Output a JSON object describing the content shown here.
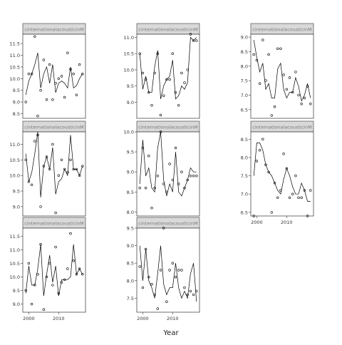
{
  "figure": {
    "xlabel": "Year",
    "strip_label": "cinternationalacousticinM"
  },
  "chart_data": [
    {
      "type": "line",
      "panel": "row1-col1",
      "strip": "cinternationalacousticinM",
      "xlim": [
        1998,
        2019
      ],
      "ylim": [
        8.3,
        11.9
      ],
      "yticks": [
        8.5,
        9.0,
        9.5,
        10.0,
        10.5,
        11.0,
        11.5
      ],
      "xticks": [],
      "show_x_labels": false,
      "line_x": [
        1999,
        2000,
        2001,
        2002,
        2003,
        2004,
        2005,
        2006,
        2007,
        2008,
        2009,
        2010,
        2011,
        2012,
        2013,
        2014,
        2015,
        2016,
        2017,
        2018
      ],
      "line_y": [
        9.3,
        9.9,
        10.2,
        10.6,
        11.1,
        9.6,
        10.2,
        10.5,
        9.8,
        10.6,
        9.4,
        9.8,
        9.9,
        9.8,
        9.6,
        10.5,
        9.6,
        9.7,
        10.0,
        10.2
      ],
      "points_x": [
        1999,
        2000,
        2001,
        2002,
        2003,
        2004,
        2005,
        2006,
        2007,
        2008,
        2009,
        2010,
        2011,
        2012,
        2013,
        2014,
        2015,
        2016,
        2017,
        2018
      ],
      "points_y": [
        9.0,
        10.2,
        10.2,
        11.8,
        8.4,
        9.5,
        10.8,
        9.1,
        10.6,
        9.1,
        9.8,
        10.0,
        10.1,
        9.2,
        11.1,
        10.4,
        10.2,
        9.3,
        10.6,
        10.2
      ]
    },
    {
      "type": "line",
      "panel": "row1-col2",
      "strip": "cinternationalacousticinM",
      "xlim": [
        1998,
        2019
      ],
      "ylim": [
        8.5,
        11.1
      ],
      "yticks": [
        9.0,
        9.5,
        10.0,
        10.5,
        11.0
      ],
      "xticks": [],
      "show_x_labels": false,
      "line_x": [
        1999,
        2000,
        2001,
        2002,
        2003,
        2004,
        2005,
        2006,
        2007,
        2008,
        2009,
        2010,
        2011,
        2012,
        2013,
        2014,
        2015,
        2016,
        2017,
        2018
      ],
      "line_y": [
        10.5,
        9.4,
        9.8,
        9.3,
        9.3,
        10.1,
        10.6,
        9.1,
        9.5,
        9.7,
        9.8,
        10.3,
        9.1,
        9.2,
        9.5,
        9.4,
        9.6,
        11.0,
        10.9,
        11.0
      ],
      "points_x": [
        1999,
        2000,
        2001,
        2002,
        2003,
        2004,
        2005,
        2006,
        2007,
        2008,
        2009,
        2010,
        2011,
        2012,
        2013,
        2014,
        2015,
        2016,
        2017,
        2018
      ],
      "points_y": [
        10.5,
        9.9,
        9.7,
        9.3,
        8.9,
        9.9,
        10.5,
        8.6,
        9.2,
        9.7,
        9.7,
        10.5,
        9.3,
        8.9,
        9.9,
        9.6,
        10.0,
        11.1,
        10.9,
        10.9
      ]
    },
    {
      "type": "line",
      "panel": "row1-col3",
      "strip": "cinternationalacousticinM",
      "xlim": [
        1998,
        2019
      ],
      "ylim": [
        6.2,
        9.1
      ],
      "yticks": [
        6.5,
        7.0,
        7.5,
        8.0,
        8.5,
        9.0
      ],
      "xticks": [],
      "show_x_labels": false,
      "line_x": [
        1999,
        2000,
        2001,
        2002,
        2003,
        2004,
        2005,
        2006,
        2007,
        2008,
        2009,
        2010,
        2011,
        2012,
        2013,
        2014,
        2015,
        2016,
        2017,
        2018
      ],
      "line_y": [
        8.9,
        8.3,
        7.8,
        8.1,
        7.2,
        7.4,
        6.9,
        6.9,
        7.9,
        8.1,
        7.2,
        6.9,
        7.1,
        7.1,
        7.6,
        7.3,
        6.8,
        7.0,
        7.4,
        6.9
      ],
      "points_x": [
        1999,
        2000,
        2001,
        2002,
        2003,
        2004,
        2005,
        2006,
        2007,
        2008,
        2009,
        2010,
        2011,
        2012,
        2013,
        2014,
        2015,
        2016,
        2017,
        2018
      ],
      "points_y": [
        8.4,
        8.2,
        7.4,
        8.9,
        7.5,
        8.4,
        6.3,
        6.6,
        8.6,
        8.6,
        7.7,
        7.2,
        7.6,
        7.1,
        7.8,
        7.0,
        6.7,
        6.9,
        7.3,
        6.7
      ]
    },
    {
      "type": "line",
      "panel": "row2-col1",
      "strip": "cinternationalacousticinM",
      "xlim": [
        1998,
        2019
      ],
      "ylim": [
        8.7,
        11.4
      ],
      "yticks": [
        9.0,
        9.5,
        10.0,
        10.5,
        11.0
      ],
      "xticks": [],
      "show_x_labels": false,
      "line_x": [
        1999,
        2000,
        2001,
        2002,
        2003,
        2004,
        2005,
        2006,
        2007,
        2008,
        2009,
        2010,
        2011,
        2012,
        2013,
        2014,
        2015,
        2016,
        2017,
        2018
      ],
      "line_y": [
        10.7,
        9.8,
        10.1,
        10.7,
        11.4,
        9.3,
        10.3,
        10.6,
        10.2,
        10.9,
        9.4,
        9.8,
        9.9,
        10.2,
        10.0,
        11.3,
        10.2,
        10.2,
        10.0,
        10.3
      ],
      "points_x": [
        1999,
        2000,
        2001,
        2002,
        2003,
        2004,
        2005,
        2006,
        2007,
        2008,
        2009,
        2010,
        2011,
        2012,
        2013,
        2014,
        2015,
        2016,
        2017,
        2018
      ],
      "points_y": [
        10.5,
        9.8,
        9.7,
        11.1,
        11.3,
        9.0,
        10.3,
        10.6,
        10.2,
        11.0,
        8.8,
        10.0,
        10.5,
        10.2,
        10.1,
        10.5,
        10.2,
        10.2,
        10.0,
        10.3
      ]
    },
    {
      "type": "line",
      "panel": "row2-col2",
      "strip": "cinternationalacousticinM",
      "xlim": [
        1998,
        2019
      ],
      "ylim": [
        7.9,
        10.0
      ],
      "yticks": [
        8.0,
        8.5,
        9.0,
        9.5,
        10.0
      ],
      "xticks": [],
      "show_x_labels": false,
      "line_x": [
        1999,
        2000,
        2001,
        2002,
        2003,
        2004,
        2005,
        2006,
        2007,
        2008,
        2009,
        2010,
        2011,
        2012,
        2013,
        2014,
        2015,
        2016,
        2017,
        2018
      ],
      "line_y": [
        8.7,
        9.8,
        8.9,
        9.1,
        8.6,
        8.5,
        9.6,
        10.0,
        8.8,
        8.4,
        8.7,
        8.5,
        9.5,
        8.5,
        8.4,
        8.6,
        8.8,
        9.1,
        9.0,
        9.0
      ],
      "points_x": [
        1999,
        2000,
        2001,
        2002,
        2003,
        2004,
        2005,
        2006,
        2007,
        2008,
        2009,
        2010,
        2011,
        2012,
        2013,
        2014,
        2015,
        2016,
        2017,
        2018
      ],
      "points_y": [
        8.6,
        9.6,
        8.6,
        9.4,
        8.1,
        8.6,
        8.9,
        10.0,
        8.7,
        8.5,
        9.2,
        8.8,
        9.6,
        8.7,
        9.0,
        8.6,
        8.8,
        8.9,
        8.9,
        8.9
      ]
    },
    {
      "type": "line",
      "panel": "row2-col3",
      "strip": "cinternationalacousticinM",
      "xlim": [
        1998,
        2019
      ],
      "ylim": [
        6.4,
        8.7
      ],
      "yticks": [
        6.5,
        7.0,
        7.5,
        8.0,
        8.5
      ],
      "xticks": [
        2000,
        2010
      ],
      "show_x_labels": true,
      "line_x": [
        1999,
        2000,
        2001,
        2002,
        2003,
        2004,
        2005,
        2006,
        2007,
        2008,
        2009,
        2010,
        2011,
        2012,
        2013,
        2014,
        2015,
        2016,
        2017,
        2018
      ],
      "line_y": [
        7.5,
        8.4,
        8.4,
        8.2,
        7.8,
        7.6,
        7.5,
        7.3,
        7.1,
        7.0,
        7.4,
        7.7,
        7.5,
        7.2,
        7.0,
        7.0,
        7.3,
        7.1,
        6.8,
        6.8
      ],
      "points_x": [
        1999,
        2000,
        2001,
        2002,
        2003,
        2004,
        2005,
        2006,
        2007,
        2008,
        2009,
        2010,
        2011,
        2012,
        2013,
        2014,
        2015,
        2016,
        2017,
        2018
      ],
      "points_y": [
        6.4,
        7.9,
        8.2,
        8.5,
        7.8,
        7.6,
        6.5,
        7.3,
        6.9,
        7.1,
        8.1,
        7.7,
        6.9,
        7.0,
        7.5,
        6.9,
        6.9,
        7.1,
        6.4,
        7.1
      ]
    },
    {
      "type": "line",
      "panel": "row3-col1",
      "strip": "cinternationalacousticinM",
      "xlim": [
        1998,
        2019
      ],
      "ylim": [
        8.7,
        11.8
      ],
      "yticks": [
        9.0,
        9.5,
        10.0,
        10.5,
        11.0,
        11.5
      ],
      "xticks": [
        2000,
        2010
      ],
      "show_x_labels": true,
      "line_x": [
        1999,
        2000,
        2001,
        2002,
        2003,
        2004,
        2005,
        2006,
        2007,
        2008,
        2009,
        2010,
        2011,
        2012,
        2013,
        2014,
        2015,
        2016,
        2017,
        2018
      ],
      "line_y": [
        9.4,
        10.4,
        9.7,
        9.7,
        10.3,
        11.2,
        9.3,
        10.1,
        10.8,
        9.8,
        10.4,
        9.3,
        9.9,
        9.9,
        9.9,
        10.0,
        11.2,
        10.1,
        10.3,
        10.1
      ],
      "points_x": [
        1999,
        2000,
        2001,
        2002,
        2003,
        2004,
        2005,
        2006,
        2007,
        2008,
        2009,
        2010,
        2011,
        2012,
        2013,
        2014,
        2015,
        2016,
        2017,
        2018
      ],
      "points_y": [
        9.5,
        10.5,
        9.0,
        9.7,
        10.1,
        11.2,
        8.8,
        10.0,
        10.5,
        9.7,
        11.1,
        9.4,
        9.8,
        9.9,
        10.3,
        11.6,
        10.6,
        10.1,
        10.3,
        10.1
      ]
    },
    {
      "type": "line",
      "panel": "row3-col2",
      "strip": "cinternationalacousticinM",
      "xlim": [
        1998,
        2019
      ],
      "ylim": [
        7.1,
        9.5
      ],
      "yticks": [
        7.5,
        8.0,
        8.5,
        9.0,
        9.5
      ],
      "xticks": [
        2000,
        2010
      ],
      "show_x_labels": true,
      "line_x": [
        1999,
        2000,
        2001,
        2002,
        2003,
        2004,
        2005,
        2006,
        2007,
        2008,
        2009,
        2010,
        2011,
        2012,
        2013,
        2014,
        2015,
        2016,
        2017,
        2018
      ],
      "line_y": [
        9.0,
        8.0,
        8.9,
        8.0,
        7.8,
        7.5,
        8.2,
        9.0,
        7.9,
        7.6,
        7.8,
        7.8,
        8.5,
        7.8,
        7.5,
        7.7,
        7.5,
        8.2,
        8.5,
        7.4
      ],
      "points_x": [
        1999,
        2000,
        2001,
        2002,
        2003,
        2004,
        2005,
        2006,
        2007,
        2008,
        2009,
        2010,
        2011,
        2012,
        2013,
        2014,
        2015,
        2016,
        2017,
        2018
      ],
      "points_y": [
        8.4,
        7.8,
        8.9,
        8.1,
        7.9,
        7.6,
        7.2,
        8.3,
        9.5,
        7.4,
        8.3,
        8.5,
        8.1,
        8.3,
        8.3,
        7.8,
        7.6,
        7.7,
        7.6,
        7.7
      ]
    }
  ]
}
